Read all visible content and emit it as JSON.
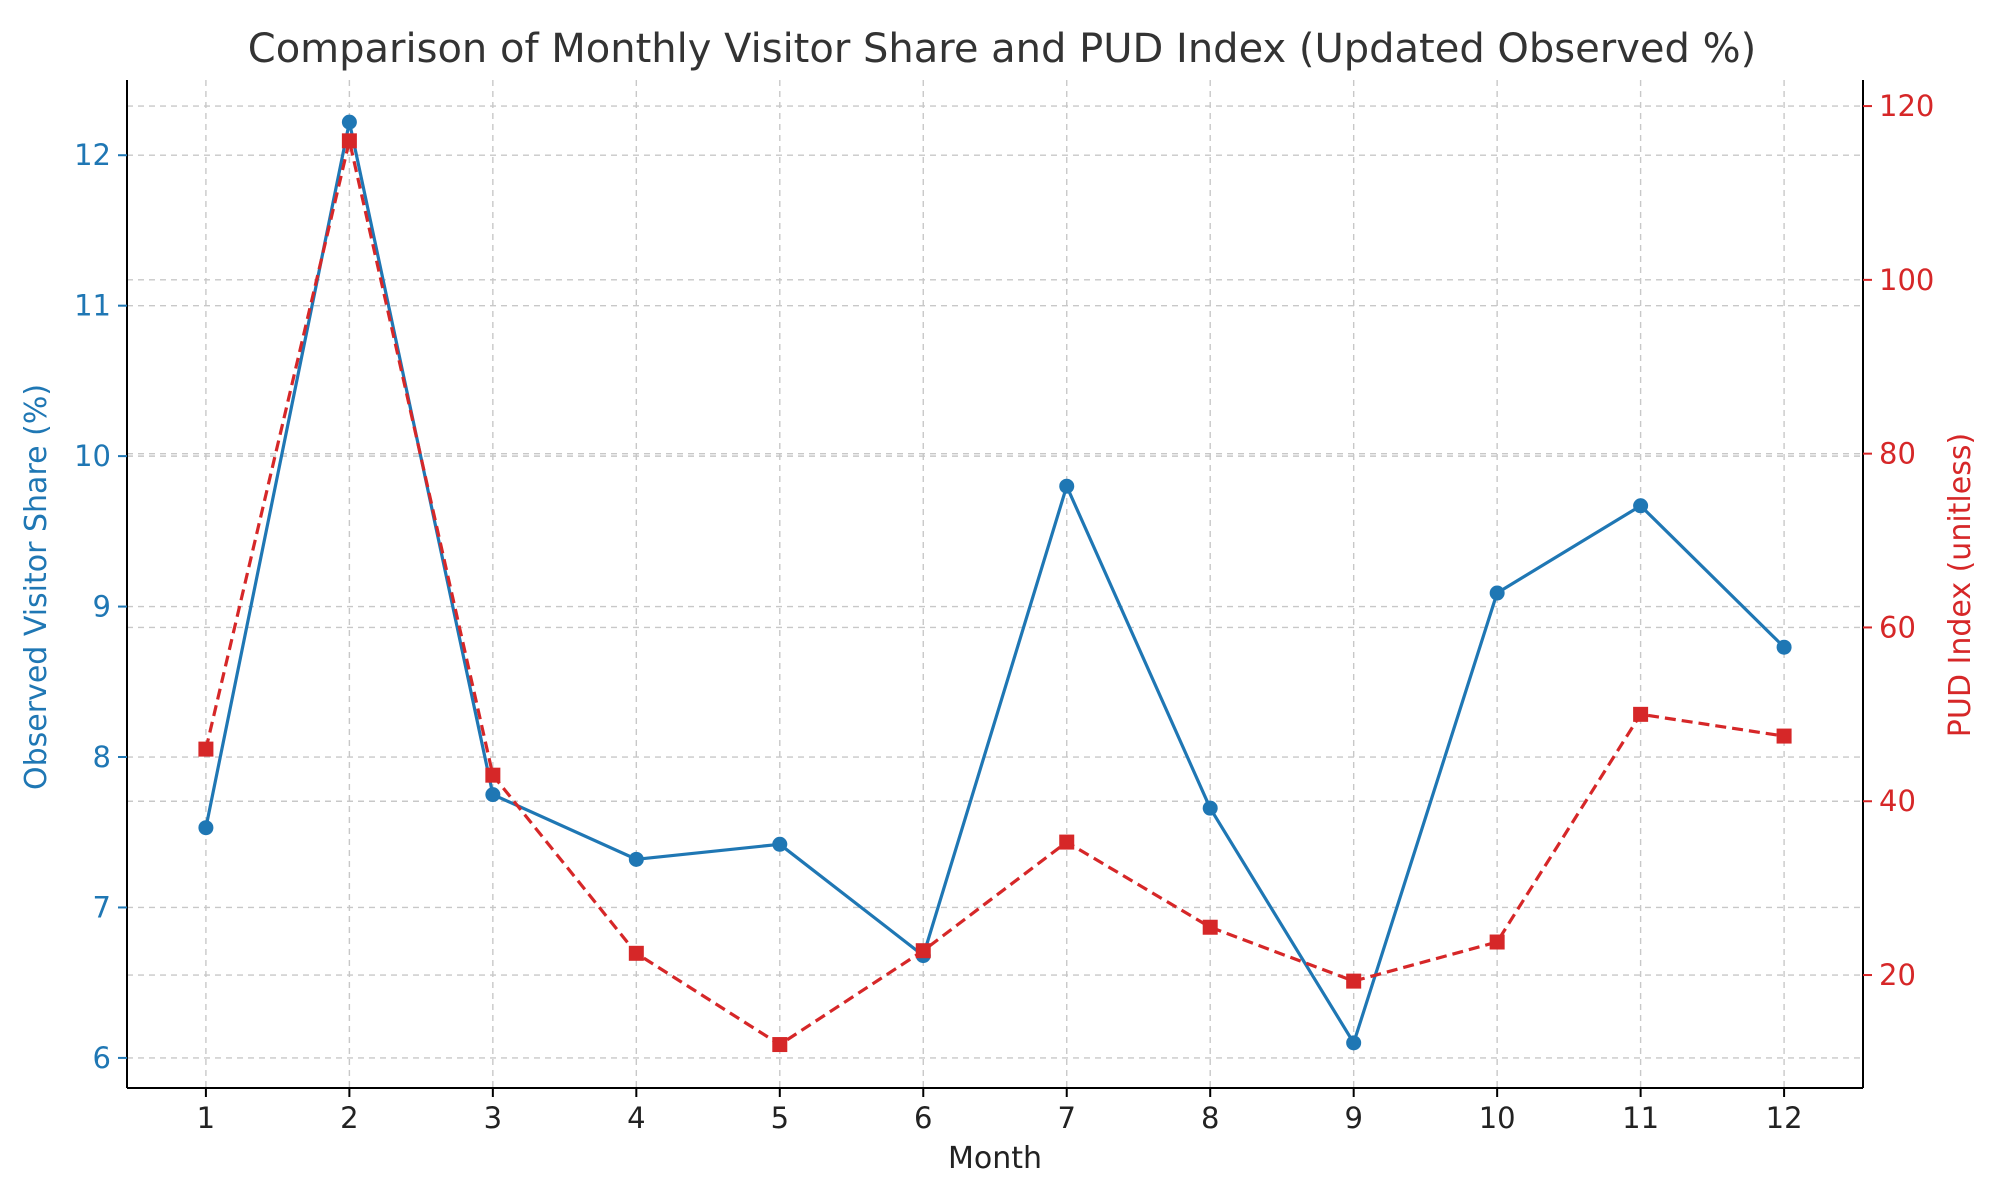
{
  "chart_data": {
    "type": "line",
    "title": "Comparison of Monthly Visitor Share and PUD Index (Updated Observed %)",
    "xlabel": "Month",
    "x": [
      1,
      2,
      3,
      4,
      5,
      6,
      7,
      8,
      9,
      10,
      11,
      12
    ],
    "xticks": [
      "1",
      "2",
      "3",
      "4",
      "5",
      "6",
      "7",
      "8",
      "9",
      "10",
      "11",
      "12"
    ],
    "y_left": {
      "label": "Observed Visitor Share (%)",
      "range": [
        5.8,
        12.5
      ],
      "ticks": [
        6,
        7,
        8,
        9,
        10,
        11,
        12
      ],
      "color": "#1f77b4"
    },
    "y_right": {
      "label": "PUD Index (unitless)",
      "range": [
        7,
        123
      ],
      "ticks": [
        20,
        40,
        60,
        80,
        100,
        120
      ],
      "color": "#d62728"
    },
    "series": [
      {
        "axis": "left",
        "color": "#1f77b4",
        "line_style": "solid",
        "marker": "circle",
        "values": [
          7.53,
          12.22,
          7.75,
          7.32,
          7.42,
          6.68,
          9.8,
          7.66,
          6.1,
          9.09,
          9.67,
          8.73
        ]
      },
      {
        "axis": "right",
        "color": "#d62728",
        "line_style": "dashed",
        "marker": "square",
        "values": [
          46.0,
          116.0,
          43.0,
          22.5,
          12.0,
          22.8,
          35.3,
          25.5,
          19.3,
          23.8,
          50.0,
          47.5
        ]
      }
    ],
    "grid": true,
    "legend": "none"
  }
}
